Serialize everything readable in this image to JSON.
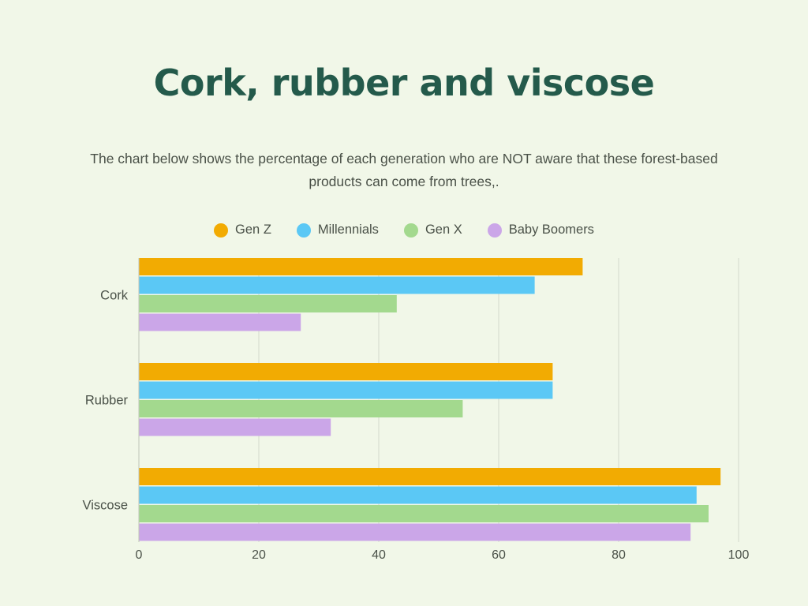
{
  "title": "Cork, rubber and viscose",
  "subtitle": "The chart below shows the percentage of each generation who are NOT aware that these forest-based products can come from trees,.",
  "colors": {
    "background": "#f1f7e8",
    "title": "#245a4b",
    "gridline": "#d3d9cc",
    "axis": "#bfc6b8"
  },
  "chart_data": {
    "type": "bar",
    "orientation": "horizontal",
    "categories": [
      "Cork",
      "Rubber",
      "Viscose"
    ],
    "series": [
      {
        "name": "Gen Z",
        "color": "#f2ab02",
        "values": [
          74,
          69,
          97
        ]
      },
      {
        "name": "Millennials",
        "color": "#5bc8f5",
        "values": [
          66,
          69,
          93
        ]
      },
      {
        "name": "Gen X",
        "color": "#a3d98e",
        "values": [
          43,
          54,
          95
        ]
      },
      {
        "name": "Baby Boomers",
        "color": "#cba6e8",
        "values": [
          27,
          32,
          92
        ]
      }
    ],
    "xlim": [
      0,
      100
    ],
    "xticks": [
      "0",
      "20",
      "40",
      "60",
      "80",
      "100"
    ],
    "grid": true,
    "legend_position": "top"
  }
}
